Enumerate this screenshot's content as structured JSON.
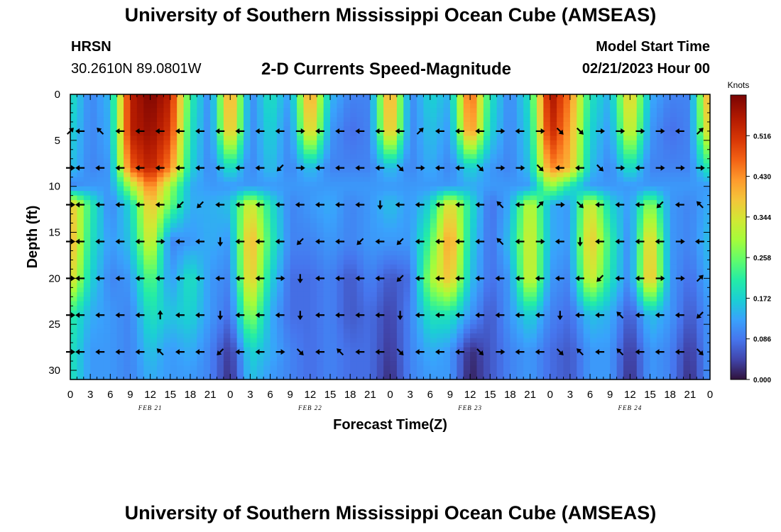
{
  "header": {
    "title": "University of Southern Mississippi Ocean Cube (AMSEAS)",
    "station": "HRSN",
    "coords": "30.2610N  89.0801W",
    "subtitle": "2-D Currents Speed-Magnitude",
    "start_label": "Model Start Time",
    "start_value": "02/21/2023 Hour 00"
  },
  "footer": {
    "title": "University of Southern Mississippi Ocean Cube (AMSEAS)"
  },
  "chart_data": {
    "type": "heatmap",
    "title": "2-D Currents Speed-Magnitude",
    "xlabel": "Forecast Time(Z)",
    "ylabel": "Depth (ft)",
    "x_range_hours": [
      0,
      96
    ],
    "y_range_ft": [
      0,
      31
    ],
    "y_ticks": [
      0,
      5,
      10,
      15,
      20,
      25,
      30
    ],
    "x_tick_hours": [
      0,
      3,
      6,
      9,
      12,
      15,
      18,
      21,
      24,
      27,
      30,
      33,
      36,
      39,
      42,
      45,
      48,
      51,
      54,
      57,
      60,
      63,
      66,
      69,
      72,
      75,
      78,
      81,
      84,
      87,
      90,
      93,
      96
    ],
    "x_tick_labels": [
      "0",
      "3",
      "6",
      "9",
      "12",
      "15",
      "18",
      "21",
      "0",
      "3",
      "6",
      "9",
      "12",
      "15",
      "18",
      "21",
      "0",
      "3",
      "6",
      "9",
      "12",
      "15",
      "18",
      "21",
      "0",
      "3",
      "6",
      "9",
      "12",
      "15",
      "18",
      "21",
      "0"
    ],
    "date_labels": [
      {
        "text": "FEB 21",
        "hour": 12
      },
      {
        "text": "FEB 22",
        "hour": 36
      },
      {
        "text": "FEB 23",
        "hour": 60
      },
      {
        "text": "FEB 24",
        "hour": 84
      }
    ],
    "colorbar": {
      "unit": "Knots",
      "range": [
        0,
        0.602
      ],
      "ticks": [
        0.0,
        0.086,
        0.172,
        0.258,
        0.344,
        0.43,
        0.516
      ],
      "tick_labels": [
        "0.000",
        "0.086",
        "0.172",
        "0.258",
        "0.344",
        "0.430",
        "0.516"
      ]
    },
    "speed_knots": {
      "hours": [
        0,
        3,
        6,
        9,
        12,
        15,
        18,
        21,
        24,
        27,
        30,
        33,
        36,
        39,
        42,
        45,
        48,
        51,
        54,
        57,
        60,
        63,
        66,
        69,
        72,
        75,
        78,
        81,
        84,
        87,
        90,
        93,
        96
      ],
      "depths_ft": [
        0,
        4,
        8,
        10,
        12,
        16,
        20,
        24,
        28,
        31
      ],
      "values": [
        [
          0.2,
          0.1,
          0.15,
          0.55,
          0.6,
          0.55,
          0.22,
          0.1,
          0.45,
          0.1,
          0.2,
          0.12,
          0.45,
          0.15,
          0.1,
          0.1,
          0.45,
          0.1,
          0.18,
          0.14,
          0.5,
          0.2,
          0.1,
          0.2,
          0.58,
          0.45,
          0.2,
          0.14,
          0.4,
          0.14,
          0.1,
          0.1,
          0.45
        ],
        [
          0.18,
          0.1,
          0.14,
          0.55,
          0.58,
          0.52,
          0.2,
          0.1,
          0.42,
          0.1,
          0.18,
          0.1,
          0.4,
          0.12,
          0.08,
          0.1,
          0.42,
          0.1,
          0.16,
          0.12,
          0.46,
          0.18,
          0.1,
          0.18,
          0.55,
          0.42,
          0.18,
          0.12,
          0.36,
          0.12,
          0.08,
          0.1,
          0.4
        ],
        [
          0.16,
          0.1,
          0.12,
          0.48,
          0.55,
          0.45,
          0.18,
          0.1,
          0.2,
          0.1,
          0.16,
          0.1,
          0.16,
          0.1,
          0.1,
          0.1,
          0.16,
          0.1,
          0.14,
          0.1,
          0.18,
          0.12,
          0.1,
          0.16,
          0.45,
          0.4,
          0.16,
          0.1,
          0.2,
          0.1,
          0.1,
          0.1,
          0.22
        ],
        [
          0.1,
          0.12,
          0.12,
          0.3,
          0.46,
          0.3,
          0.14,
          0.12,
          0.12,
          0.12,
          0.12,
          0.12,
          0.12,
          0.12,
          0.12,
          0.12,
          0.12,
          0.12,
          0.12,
          0.12,
          0.14,
          0.12,
          0.12,
          0.12,
          0.3,
          0.2,
          0.12,
          0.12,
          0.12,
          0.12,
          0.12,
          0.12,
          0.12
        ],
        [
          0.4,
          0.22,
          0.1,
          0.18,
          0.4,
          0.26,
          0.14,
          0.14,
          0.16,
          0.36,
          0.2,
          0.1,
          0.12,
          0.14,
          0.1,
          0.12,
          0.16,
          0.12,
          0.18,
          0.38,
          0.2,
          0.08,
          0.14,
          0.34,
          0.14,
          0.12,
          0.36,
          0.18,
          0.12,
          0.3,
          0.12,
          0.1,
          0.14
        ],
        [
          0.42,
          0.2,
          0.12,
          0.16,
          0.36,
          0.1,
          0.12,
          0.14,
          0.12,
          0.42,
          0.22,
          0.1,
          0.1,
          0.12,
          0.1,
          0.12,
          0.12,
          0.12,
          0.24,
          0.44,
          0.18,
          0.08,
          0.16,
          0.36,
          0.14,
          0.12,
          0.4,
          0.22,
          0.1,
          0.4,
          0.12,
          0.1,
          0.16
        ],
        [
          0.38,
          0.18,
          0.1,
          0.12,
          0.26,
          0.12,
          0.2,
          0.12,
          0.1,
          0.4,
          0.18,
          0.08,
          0.08,
          0.1,
          0.06,
          0.1,
          0.06,
          0.08,
          0.3,
          0.4,
          0.16,
          0.08,
          0.12,
          0.36,
          0.12,
          0.1,
          0.36,
          0.2,
          0.1,
          0.42,
          0.12,
          0.08,
          0.14
        ],
        [
          0.22,
          0.14,
          0.12,
          0.1,
          0.2,
          0.16,
          0.18,
          0.12,
          0.08,
          0.3,
          0.14,
          0.08,
          0.08,
          0.1,
          0.06,
          0.08,
          0.04,
          0.1,
          0.2,
          0.2,
          0.12,
          0.06,
          0.12,
          0.18,
          0.1,
          0.08,
          0.16,
          0.14,
          0.06,
          0.16,
          0.12,
          0.06,
          0.12
        ],
        [
          0.2,
          0.12,
          0.12,
          0.1,
          0.16,
          0.12,
          0.14,
          0.1,
          0.03,
          0.18,
          0.14,
          0.1,
          0.08,
          0.1,
          0.08,
          0.08,
          0.03,
          0.1,
          0.14,
          0.12,
          0.02,
          0.06,
          0.1,
          0.12,
          0.08,
          0.06,
          0.12,
          0.12,
          0.03,
          0.12,
          0.1,
          0.03,
          0.12
        ],
        [
          0.2,
          0.12,
          0.12,
          0.1,
          0.14,
          0.12,
          0.12,
          0.1,
          0.02,
          0.16,
          0.12,
          0.1,
          0.08,
          0.1,
          0.08,
          0.08,
          0.02,
          0.1,
          0.12,
          0.12,
          0.01,
          0.06,
          0.1,
          0.12,
          0.08,
          0.06,
          0.12,
          0.12,
          0.02,
          0.12,
          0.1,
          0.02,
          0.12
        ]
      ]
    },
    "vector_depths_ft": [
      4,
      8,
      12,
      16,
      20,
      24,
      28
    ],
    "vector_hours": [
      0,
      1.5,
      4.5,
      7.5,
      10.5,
      13.5,
      16.5,
      19.5,
      22.5,
      25.5,
      28.5,
      31.5,
      34.5,
      37.5,
      40.5,
      43.5,
      46.5,
      49.5,
      52.5,
      55.5,
      58.5,
      61.5,
      64.5,
      67.5,
      70.5,
      73.5,
      76.5,
      79.5,
      82.5,
      85.5,
      88.5,
      91.5,
      94.5
    ],
    "vector_direction_deg": [
      [
        45,
        180,
        135,
        180,
        180,
        180,
        180,
        180,
        180,
        180,
        180,
        180,
        0,
        180,
        180,
        180,
        180,
        180,
        45,
        180,
        180,
        180,
        0,
        180,
        0,
        315,
        315,
        0,
        0,
        0,
        0,
        180,
        45
      ],
      [
        0,
        180,
        180,
        180,
        180,
        180,
        180,
        180,
        180,
        180,
        180,
        225,
        0,
        180,
        180,
        180,
        180,
        315,
        0,
        180,
        180,
        315,
        0,
        0,
        315,
        180,
        180,
        315,
        0,
        180,
        0,
        0,
        0
      ],
      [
        0,
        180,
        180,
        180,
        180,
        180,
        225,
        225,
        180,
        180,
        180,
        180,
        180,
        180,
        180,
        180,
        270,
        180,
        180,
        180,
        180,
        180,
        135,
        180,
        45,
        0,
        315,
        180,
        180,
        180,
        225,
        180,
        135
      ],
      [
        0,
        180,
        180,
        180,
        180,
        0,
        180,
        180,
        270,
        180,
        180,
        180,
        225,
        180,
        180,
        225,
        180,
        225,
        180,
        180,
        180,
        180,
        135,
        180,
        0,
        180,
        270,
        180,
        180,
        180,
        180,
        0,
        180
      ],
      [
        0,
        180,
        180,
        180,
        180,
        180,
        180,
        180,
        180,
        180,
        180,
        0,
        270,
        180,
        180,
        180,
        180,
        225,
        180,
        180,
        180,
        180,
        180,
        180,
        180,
        180,
        180,
        225,
        180,
        180,
        0,
        0,
        45
      ],
      [
        0,
        180,
        180,
        180,
        180,
        90,
        180,
        180,
        270,
        180,
        180,
        180,
        270,
        180,
        180,
        180,
        180,
        270,
        180,
        180,
        180,
        180,
        180,
        180,
        180,
        270,
        180,
        180,
        135,
        180,
        180,
        180,
        225
      ],
      [
        0,
        180,
        180,
        180,
        180,
        135,
        180,
        180,
        225,
        180,
        180,
        0,
        315,
        180,
        135,
        180,
        180,
        315,
        180,
        180,
        180,
        315,
        0,
        180,
        180,
        315,
        135,
        180,
        135,
        180,
        180,
        180,
        315
      ]
    ]
  }
}
